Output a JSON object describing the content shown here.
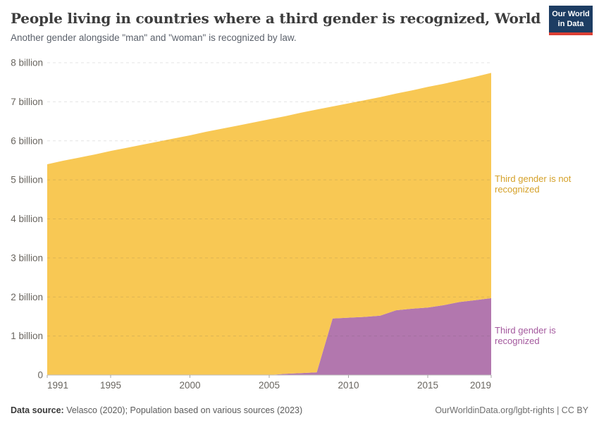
{
  "header": {
    "title": "People living in countries where a third gender is recognized, World",
    "subtitle": "Another gender alongside \"man\" and \"woman\" is recognized by law."
  },
  "logo": {
    "line1": "Our World",
    "line2": "in Data",
    "bg_color": "#1d3d63",
    "bar_color": "#dc3f34"
  },
  "chart_data": {
    "type": "area",
    "stacked": true,
    "title": "People living in countries where a third gender is recognized, World",
    "unit": "people (billions)",
    "xlim": [
      1991,
      2019
    ],
    "ylim": [
      0,
      8
    ],
    "grid": "horizontal-dashed",
    "legend_position": "right-edge-labels",
    "x": [
      1991,
      1992,
      1993,
      1994,
      1995,
      1996,
      1997,
      1998,
      1999,
      2000,
      2001,
      2002,
      2003,
      2004,
      2005,
      2006,
      2007,
      2008,
      2009,
      2010,
      2011,
      2012,
      2013,
      2014,
      2015,
      2016,
      2017,
      2018,
      2019
    ],
    "xticks": [
      1991,
      1995,
      2000,
      2005,
      2010,
      2015,
      2019
    ],
    "yticks": [
      {
        "value": 0,
        "label": "0"
      },
      {
        "value": 1,
        "label": "1 billion"
      },
      {
        "value": 2,
        "label": "2 billion"
      },
      {
        "value": 3,
        "label": "3 billion"
      },
      {
        "value": 4,
        "label": "4 billion"
      },
      {
        "value": 5,
        "label": "5 billion"
      },
      {
        "value": 6,
        "label": "6 billion"
      },
      {
        "value": 7,
        "label": "7 billion"
      },
      {
        "value": 8,
        "label": "8 billion"
      }
    ],
    "series": [
      {
        "name": "Third gender is recognized",
        "area_color": "#b277ae",
        "label_color": "#a4599e",
        "values": [
          0,
          0,
          0,
          0,
          0,
          0,
          0,
          0,
          0,
          0,
          0,
          0,
          0,
          0,
          0,
          0.03,
          0.05,
          0.07,
          1.45,
          1.47,
          1.49,
          1.52,
          1.66,
          1.7,
          1.73,
          1.79,
          1.87,
          1.92,
          1.97
        ]
      },
      {
        "name": "Third gender is not recognized",
        "area_color": "#f8c854",
        "label_color": "#d5a129",
        "values": [
          5.4,
          5.49,
          5.57,
          5.65,
          5.74,
          5.82,
          5.9,
          5.98,
          6.06,
          6.14,
          6.23,
          6.31,
          6.39,
          6.47,
          6.55,
          6.6,
          6.67,
          6.73,
          5.43,
          5.49,
          5.55,
          5.6,
          5.55,
          5.59,
          5.65,
          5.67,
          5.68,
          5.72,
          5.77
        ]
      }
    ],
    "totals_note": "Stacked total equals world population, ~5.40 billion in 1991 to ~7.74 billion in 2019"
  },
  "footer": {
    "source_label": "Data source:",
    "source_text": " Velasco (2020); Population based on various sources (2023)",
    "credit": "OurWorldinData.org/lgbt-rights | CC BY"
  }
}
